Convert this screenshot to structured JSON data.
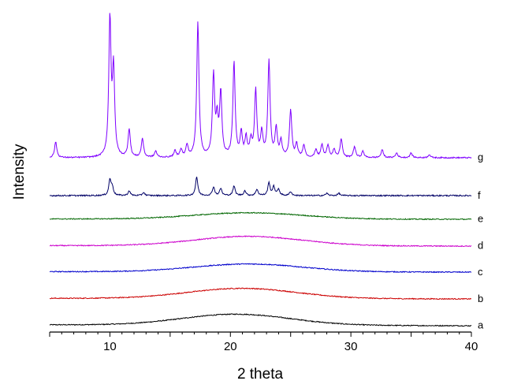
{
  "chart_data": {
    "type": "line",
    "title": "",
    "xlabel": "2 theta",
    "ylabel": "Intensity",
    "xlim": [
      5,
      40
    ],
    "xticks": [
      10,
      20,
      30,
      40
    ],
    "grid": false,
    "legend": "none",
    "yticks_shown": false,
    "series": [
      {
        "name": "a",
        "color": "#000000",
        "base": 0,
        "kind": "amorphous",
        "hump_center": 20.5,
        "hump_width": 4.5,
        "hump_height": 14,
        "tail_slope": 0.6
      },
      {
        "name": "b",
        "color": "#cc0000",
        "base": 34,
        "kind": "amorphous",
        "hump_center": 21.0,
        "hump_width": 4.5,
        "hump_height": 13,
        "tail_slope": 0.4
      },
      {
        "name": "c",
        "color": "#0000cc",
        "base": 68,
        "kind": "amorphous",
        "hump_center": 21.5,
        "hump_width": 4.5,
        "hump_height": 10,
        "tail_slope": 0.3
      },
      {
        "name": "d",
        "color": "#cc00cc",
        "base": 101,
        "kind": "amorphous",
        "hump_center": 21.5,
        "hump_width": 4.5,
        "hump_height": 12,
        "tail_slope": 0.3
      },
      {
        "name": "e",
        "color": "#006600",
        "base": 135,
        "kind": "amorphous",
        "hump_center": 21.5,
        "hump_width": 4.5,
        "hump_height": 8,
        "tail_slope": 0.2
      },
      {
        "name": "f",
        "color": "#000066",
        "base": 165,
        "kind": "crystalline",
        "peaks": [
          [
            10.0,
            20
          ],
          [
            10.2,
            10
          ],
          [
            11.6,
            6
          ],
          [
            12.8,
            4
          ],
          [
            17.2,
            24
          ],
          [
            18.6,
            11
          ],
          [
            19.2,
            9
          ],
          [
            20.3,
            12
          ],
          [
            21.2,
            6
          ],
          [
            22.2,
            8
          ],
          [
            23.2,
            16
          ],
          [
            23.6,
            11
          ],
          [
            24.0,
            8
          ],
          [
            25.0,
            5
          ],
          [
            28.0,
            3
          ],
          [
            29.0,
            3
          ]
        ]
      },
      {
        "name": "g",
        "color": "#7f00ff",
        "base": 213,
        "kind": "crystalline",
        "peaks": [
          [
            5.5,
            20
          ],
          [
            10.0,
            174
          ],
          [
            10.3,
            108
          ],
          [
            11.6,
            36
          ],
          [
            12.7,
            24
          ],
          [
            13.8,
            8
          ],
          [
            15.4,
            8
          ],
          [
            15.9,
            10
          ],
          [
            16.4,
            15
          ],
          [
            17.3,
            172
          ],
          [
            18.6,
            102
          ],
          [
            18.9,
            44
          ],
          [
            19.2,
            80
          ],
          [
            20.3,
            120
          ],
          [
            20.9,
            30
          ],
          [
            21.3,
            24
          ],
          [
            21.7,
            20
          ],
          [
            22.1,
            84
          ],
          [
            22.6,
            30
          ],
          [
            23.2,
            122
          ],
          [
            23.8,
            36
          ],
          [
            24.2,
            20
          ],
          [
            25.0,
            60
          ],
          [
            25.5,
            16
          ],
          [
            26.1,
            16
          ],
          [
            27.1,
            10
          ],
          [
            27.6,
            16
          ],
          [
            28.1,
            16
          ],
          [
            28.6,
            10
          ],
          [
            29.2,
            24
          ],
          [
            30.3,
            14
          ],
          [
            31.0,
            8
          ],
          [
            32.6,
            10
          ],
          [
            33.8,
            6
          ],
          [
            35.0,
            6
          ],
          [
            36.5,
            4
          ]
        ]
      }
    ]
  }
}
